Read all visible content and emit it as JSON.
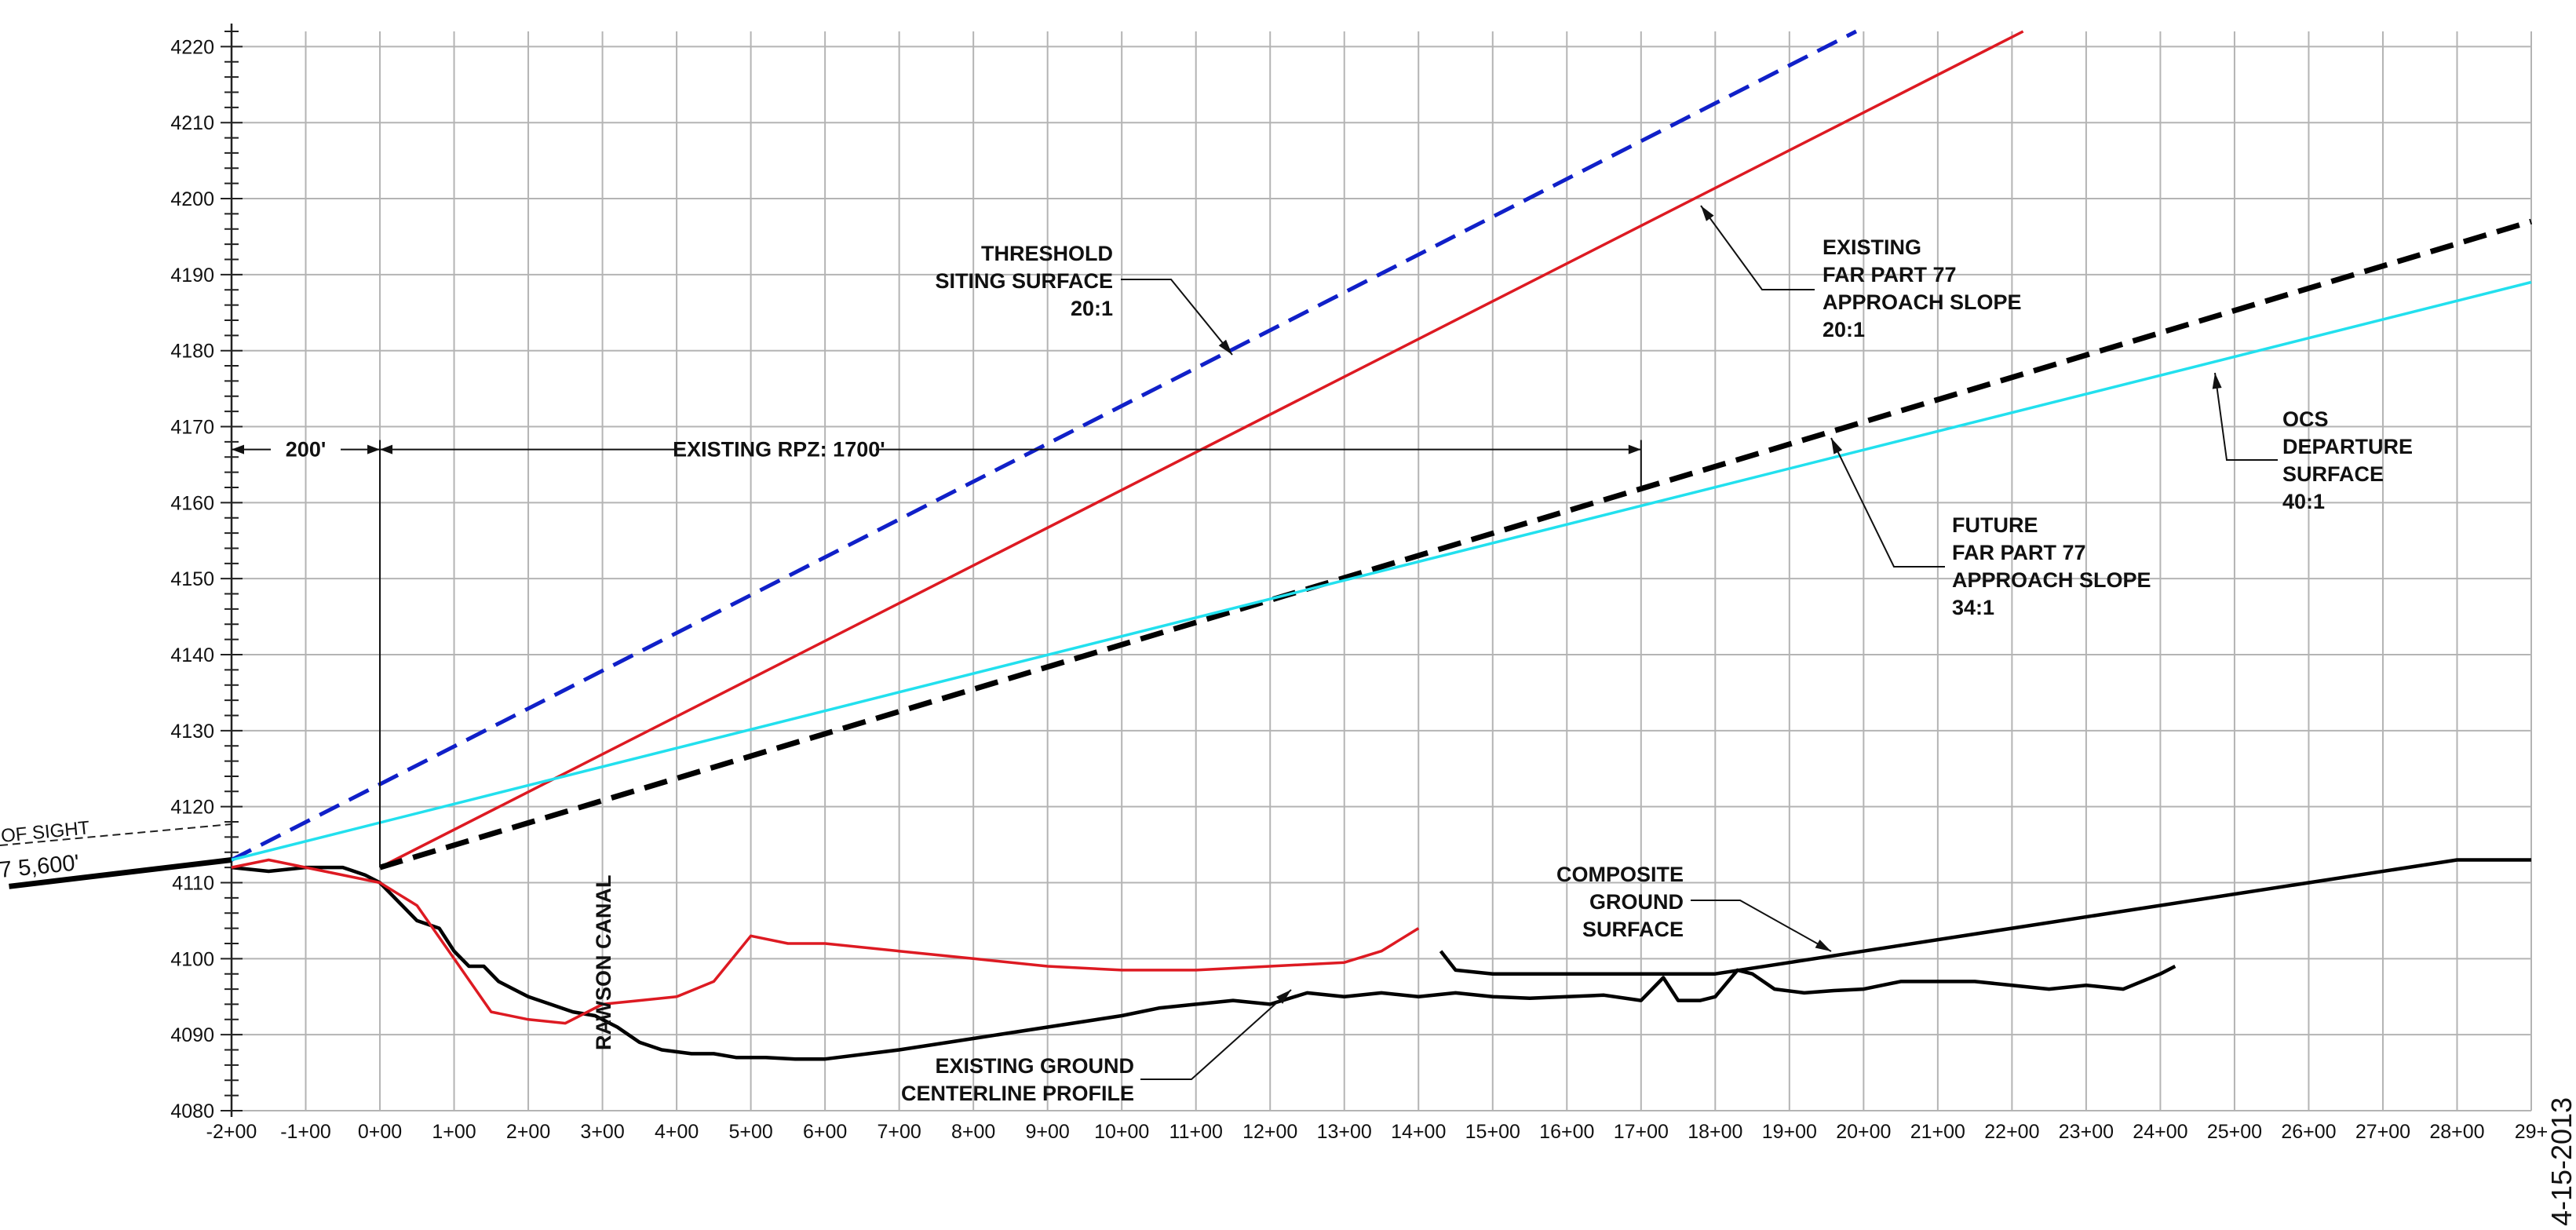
{
  "chart_data": {
    "type": "line",
    "title": "",
    "xlabel": "",
    "ylabel": "",
    "xlim": [
      -200,
      2900
    ],
    "ylim": [
      4080,
      4222
    ],
    "x_ticks": [
      {
        "v": -200,
        "label": "-2+00"
      },
      {
        "v": -100,
        "label": "-1+00"
      },
      {
        "v": 0,
        "label": "0+00"
      },
      {
        "v": 100,
        "label": "1+00"
      },
      {
        "v": 200,
        "label": "2+00"
      },
      {
        "v": 300,
        "label": "3+00"
      },
      {
        "v": 400,
        "label": "4+00"
      },
      {
        "v": 500,
        "label": "5+00"
      },
      {
        "v": 600,
        "label": "6+00"
      },
      {
        "v": 700,
        "label": "7+00"
      },
      {
        "v": 800,
        "label": "8+00"
      },
      {
        "v": 900,
        "label": "9+00"
      },
      {
        "v": 1000,
        "label": "10+00"
      },
      {
        "v": 1100,
        "label": "11+00"
      },
      {
        "v": 1200,
        "label": "12+00"
      },
      {
        "v": 1300,
        "label": "13+00"
      },
      {
        "v": 1400,
        "label": "14+00"
      },
      {
        "v": 1500,
        "label": "15+00"
      },
      {
        "v": 1600,
        "label": "16+00"
      },
      {
        "v": 1700,
        "label": "17+00"
      },
      {
        "v": 1800,
        "label": "18+00"
      },
      {
        "v": 1900,
        "label": "19+00"
      },
      {
        "v": 2000,
        "label": "20+00"
      },
      {
        "v": 2100,
        "label": "21+00"
      },
      {
        "v": 2200,
        "label": "22+00"
      },
      {
        "v": 2300,
        "label": "23+00"
      },
      {
        "v": 2400,
        "label": "24+00"
      },
      {
        "v": 2500,
        "label": "25+00"
      },
      {
        "v": 2600,
        "label": "26+00"
      },
      {
        "v": 2700,
        "label": "27+00"
      },
      {
        "v": 2800,
        "label": "28+00"
      },
      {
        "v": 2900,
        "label": "29+"
      }
    ],
    "y_ticks": [
      4080,
      4090,
      4100,
      4110,
      4120,
      4130,
      4140,
      4150,
      4160,
      4170,
      4180,
      4190,
      4200,
      4210,
      4220
    ],
    "grid": true,
    "series": [
      {
        "key": "threshold",
        "color": "#1020c8",
        "dash": "dashed",
        "values": [
          [
            -200,
            4113
          ],
          [
            1990,
            4222
          ]
        ]
      },
      {
        "key": "existing_p77",
        "color": "#dd1a22",
        "dash": "solid",
        "values": [
          [
            0,
            4112
          ],
          [
            2215,
            4222
          ]
        ]
      },
      {
        "key": "future_p77",
        "color": "#000000",
        "dash": "dashed",
        "values": [
          [
            0,
            4112
          ],
          [
            2900,
            4197
          ]
        ]
      },
      {
        "key": "ocs",
        "color": "#22e0ee",
        "dash": "solid",
        "values": [
          [
            -200,
            4113
          ],
          [
            2900,
            4189
          ]
        ]
      },
      {
        "key": "existing_ground",
        "color": "#000000",
        "dash": "solid",
        "values": [
          [
            -200,
            4112
          ],
          [
            -150,
            4111.5
          ],
          [
            -100,
            4112
          ],
          [
            -50,
            4112
          ],
          [
            -20,
            4111
          ],
          [
            0,
            4110
          ],
          [
            30,
            4107
          ],
          [
            50,
            4105
          ],
          [
            80,
            4104
          ],
          [
            100,
            4101
          ],
          [
            120,
            4099
          ],
          [
            140,
            4099
          ],
          [
            160,
            4097
          ],
          [
            180,
            4096
          ],
          [
            200,
            4095
          ],
          [
            230,
            4094
          ],
          [
            260,
            4093
          ],
          [
            290,
            4092.5
          ],
          [
            320,
            4091
          ],
          [
            350,
            4089
          ],
          [
            380,
            4088
          ],
          [
            420,
            4087.5
          ],
          [
            450,
            4087.5
          ],
          [
            480,
            4087
          ],
          [
            520,
            4087
          ],
          [
            560,
            4086.8
          ],
          [
            600,
            4086.8
          ],
          [
            700,
            4088
          ],
          [
            800,
            4089.5
          ],
          [
            900,
            4091
          ],
          [
            1000,
            4092.5
          ],
          [
            1050,
            4093.5
          ],
          [
            1100,
            4094
          ],
          [
            1150,
            4094.5
          ],
          [
            1200,
            4094
          ],
          [
            1250,
            4095.5
          ],
          [
            1300,
            4095
          ],
          [
            1350,
            4095.5
          ],
          [
            1400,
            4095
          ],
          [
            1450,
            4095.5
          ],
          [
            1500,
            4095
          ],
          [
            1550,
            4094.8
          ],
          [
            1600,
            4095
          ],
          [
            1650,
            4095.2
          ],
          [
            1700,
            4094.5
          ],
          [
            1730,
            4097.5
          ],
          [
            1750,
            4094.5
          ],
          [
            1780,
            4094.5
          ],
          [
            1800,
            4095
          ],
          [
            1830,
            4098.5
          ],
          [
            1850,
            4098
          ],
          [
            1880,
            4096
          ],
          [
            1920,
            4095.5
          ],
          [
            1960,
            4095.8
          ],
          [
            2000,
            4096
          ],
          [
            2050,
            4097
          ],
          [
            2100,
            4097
          ],
          [
            2150,
            4097
          ],
          [
            2200,
            4096.5
          ],
          [
            2250,
            4096
          ],
          [
            2300,
            4096.5
          ],
          [
            2350,
            4096
          ],
          [
            2400,
            4098
          ],
          [
            2420,
            4099
          ]
        ]
      },
      {
        "key": "red_profile",
        "color": "#dd1a22",
        "dash": "solid",
        "values": [
          [
            -200,
            4112
          ],
          [
            -150,
            4113
          ],
          [
            -100,
            4112
          ],
          [
            0,
            4110
          ],
          [
            50,
            4107
          ],
          [
            100,
            4100
          ],
          [
            150,
            4093
          ],
          [
            200,
            4092
          ],
          [
            250,
            4091.5
          ],
          [
            300,
            4094
          ],
          [
            350,
            4094.5
          ],
          [
            400,
            4095
          ],
          [
            450,
            4097
          ],
          [
            500,
            4103
          ],
          [
            550,
            4102
          ],
          [
            600,
            4102
          ],
          [
            700,
            4101
          ],
          [
            800,
            4100
          ],
          [
            900,
            4099
          ],
          [
            1000,
            4098.5
          ],
          [
            1100,
            4098.5
          ],
          [
            1200,
            4099
          ],
          [
            1300,
            4099.5
          ],
          [
            1350,
            4101
          ],
          [
            1400,
            4104
          ]
        ]
      },
      {
        "key": "composite_ground",
        "color": "#000000",
        "dash": "solid",
        "values": [
          [
            1430,
            4101
          ],
          [
            1450,
            4098.5
          ],
          [
            1500,
            4098
          ],
          [
            1800,
            4098
          ],
          [
            2000,
            4101
          ],
          [
            2200,
            4104
          ],
          [
            2800,
            4113
          ],
          [
            2900,
            4113
          ]
        ]
      },
      {
        "key": "los_left",
        "color": "#000000",
        "dash": "solid",
        "values": [
          [
            -500,
            4109.5
          ],
          [
            -200,
            4113
          ]
        ]
      }
    ],
    "dimensions": {
      "dim_200": {
        "label": "200'",
        "from": -200,
        "to": 0,
        "y": 4167
      },
      "dim_rpz": {
        "label": "EXISTING RPZ: 1700'",
        "from": 0,
        "to": 1700,
        "y": 4167
      }
    },
    "annotations": {
      "threshold": [
        "THRESHOLD",
        "SITING SURFACE",
        "20:1"
      ],
      "existing_p77": [
        "EXISTING",
        "FAR PART 77",
        "APPROACH SLOPE",
        "20:1"
      ],
      "ocs": [
        "OCS",
        "DEPARTURE",
        "SURFACE",
        "40:1"
      ],
      "future_p77": [
        "FUTURE",
        "FAR PART 77",
        "APPROACH SLOPE",
        "34:1"
      ],
      "composite": [
        "COMPOSITE",
        "GROUND",
        "SURFACE"
      ],
      "existing_ground": [
        "EXISTING GROUND",
        "CENTERLINE PROFILE"
      ],
      "canal": "RAWSON CANAL",
      "los_sight": "OF SIGHT",
      "los_dist": "7   5,600'",
      "date": "4-15-2013"
    }
  }
}
